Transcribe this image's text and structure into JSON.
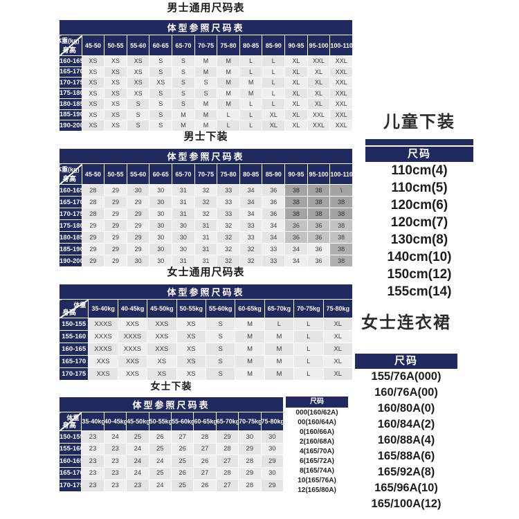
{
  "colors": {
    "navy": "#212a5e",
    "cell_gray": "#efefef",
    "dark_gray": "#a3a3a3"
  },
  "tables": [
    {
      "id": "men-general",
      "title": "男士通用尺码表",
      "subheader": "体型参照尺码表",
      "corner": {
        "top": "体重(kg)",
        "bottom": "身高"
      },
      "columns": [
        "45-50",
        "50-55",
        "55-60",
        "60-65",
        "65-70",
        "70-75",
        "75-80",
        "80-85",
        "85-90",
        "90-95",
        "95-100",
        "100-110"
      ],
      "rows": [
        {
          "label": "160-165",
          "values": [
            "XS",
            "XS",
            "XS",
            "S",
            "S",
            "M",
            "M",
            "L",
            "L",
            "XL",
            "XXL",
            "XXL"
          ]
        },
        {
          "label": "165-170",
          "values": [
            "XS",
            "XS",
            "XS",
            "S",
            "S",
            "M",
            "M",
            "L",
            "L",
            "XL",
            "XL",
            "XXL"
          ]
        },
        {
          "label": "170-175",
          "values": [
            "XS",
            "XS",
            "XS",
            "XS",
            "S",
            "S",
            "M",
            "M",
            "L",
            "XL",
            "XL",
            "XXL"
          ]
        },
        {
          "label": "175-180",
          "values": [
            "XS",
            "XS",
            "XS",
            "S",
            "S",
            "S",
            "M",
            "M",
            "L",
            "XL",
            "XL",
            "XXL"
          ]
        },
        {
          "label": "180-185",
          "values": [
            "XS",
            "XS",
            "S",
            "S",
            "S",
            "M",
            "M",
            "L",
            "L",
            "XL",
            "XL",
            "XXL"
          ]
        },
        {
          "label": "185-190",
          "values": [
            "XS",
            "XS",
            "S",
            "S",
            "M",
            "M",
            "L",
            "L",
            "XL",
            "XL",
            "XXL",
            "XXL"
          ]
        },
        {
          "label": "190-200",
          "values": [
            "XS",
            "XS",
            "S",
            "S",
            "M",
            "M",
            "L",
            "L",
            "XL",
            "XL",
            "XXL",
            "XXL"
          ]
        }
      ]
    },
    {
      "id": "men-bottoms",
      "title": "男士下装",
      "subheader": "体型参照尺码表",
      "corner": {
        "top": "体重(kg)",
        "bottom": "身高"
      },
      "columns": [
        "45-50",
        "50-55",
        "55-60",
        "60-65",
        "65-70",
        "70-75",
        "75-80",
        "80-85",
        "85-90",
        "90-95",
        "95-100",
        "100-110"
      ],
      "rows": [
        {
          "label": "160-165",
          "values": [
            "28",
            "29",
            "30",
            "30",
            "31",
            "32",
            "33",
            "34",
            "36",
            "38",
            "38",
            "\\"
          ]
        },
        {
          "label": "165-170",
          "values": [
            "28",
            "29",
            "29",
            "30",
            "31",
            "32",
            "33",
            "34",
            "36",
            "38",
            "38",
            "38"
          ]
        },
        {
          "label": "170-175",
          "values": [
            "28",
            "29",
            "29",
            "30",
            "31",
            "32",
            "33",
            "34",
            "36",
            "38",
            "38",
            "38"
          ]
        },
        {
          "label": "175-180",
          "values": [
            "29",
            "29",
            "29",
            "30",
            "30",
            "31",
            "32",
            "33",
            "34",
            "36",
            "36",
            "38"
          ]
        },
        {
          "label": "180-185",
          "values": [
            "29",
            "29",
            "29",
            "30",
            "30",
            "31",
            "32",
            "33",
            "34",
            "36",
            "36",
            "38"
          ]
        },
        {
          "label": "185-190",
          "values": [
            "29",
            "29",
            "29",
            "30",
            "30",
            "31",
            "32",
            "32",
            "33",
            "34",
            "36",
            "38"
          ]
        },
        {
          "label": "190-200",
          "values": [
            "29",
            "29",
            "30",
            "30",
            "31",
            "31",
            "32",
            "32",
            "33",
            "34",
            "36",
            "38"
          ]
        }
      ]
    },
    {
      "id": "women-general",
      "title": "女士通用尺码表",
      "subheader": "体型参照尺码表",
      "corner": {
        "top": "体重",
        "bottom": "身高"
      },
      "columns": [
        "35-40kg",
        "40-45kg",
        "45-50kg",
        "50-55kg",
        "55-60kg",
        "60-65kg",
        "65-70kg",
        "70-75kg",
        "75-80kg"
      ],
      "rows": [
        {
          "label": "150-155",
          "values": [
            "XXXS",
            "XXS",
            "XXS",
            "XS",
            "S",
            "M",
            "L",
            "L",
            "XL"
          ]
        },
        {
          "label": "155-160",
          "values": [
            "XXXS",
            "XXXS",
            "XXS",
            "XS",
            "S",
            "M",
            "M",
            "L",
            "XL"
          ]
        },
        {
          "label": "160-165",
          "values": [
            "XXXS",
            "XXXS",
            "XXS",
            "XS",
            "S",
            "M",
            "M",
            "L",
            "XL"
          ]
        },
        {
          "label": "165-170",
          "values": [
            "XXS",
            "XXS",
            "XS",
            "XS",
            "S",
            "M",
            "M",
            "L",
            "XL"
          ]
        },
        {
          "label": "170-175",
          "values": [
            "XXS",
            "XXS",
            "XS",
            "XS",
            "S",
            "M",
            "M",
            "L",
            "XL"
          ]
        }
      ]
    },
    {
      "id": "women-bottoms",
      "title": "女士下装",
      "subheader": "体型参照尺码表",
      "corner": {
        "top": "体重",
        "bottom": "身高"
      },
      "columns": [
        "35-40kg",
        "40-45kg",
        "45-50kg",
        "50-55kg",
        "55-60kg",
        "60-65kg",
        "65-70kg",
        "70-75kg",
        "75-80kg"
      ],
      "rows": [
        {
          "label": "150-155",
          "values": [
            "23",
            "24",
            "25",
            "26",
            "27",
            "28",
            "29",
            "30",
            "30"
          ]
        },
        {
          "label": "155-160",
          "values": [
            "23",
            "23",
            "24",
            "25",
            "26",
            "27",
            "28",
            "29",
            "30"
          ]
        },
        {
          "label": "160-165",
          "values": [
            "23",
            "23",
            "24",
            "24",
            "25",
            "26",
            "27",
            "28",
            "29"
          ]
        },
        {
          "label": "165-170",
          "values": [
            "23",
            "23",
            "24",
            "25",
            "26",
            "27",
            "28",
            "29",
            "30"
          ]
        },
        {
          "label": "170-175",
          "values": [
            "23",
            "23",
            "23",
            "24",
            "25",
            "26",
            "27",
            "28",
            "29"
          ]
        }
      ]
    }
  ],
  "mini_table": {
    "header": "尺码",
    "items": [
      "000(160/62A)",
      "00(160/64A)",
      "0(160/66A)",
      "2(160/68A)",
      "4(165/70A)",
      "6(165/72A)",
      "8(165/74A)",
      "10(165/76A)",
      "12(165/80A)"
    ]
  },
  "side_panels": [
    {
      "id": "kids-bottoms",
      "title": "儿童下装",
      "header": "尺码",
      "items": [
        "110cm(4)",
        "110cm(5)",
        "120cm(6)",
        "120cm(7)",
        "130cm(8)",
        "140cm(10)",
        "150cm(12)",
        "155cm(14)"
      ]
    },
    {
      "id": "women-dress",
      "title": "女士连衣裙",
      "header": "尺码",
      "items": [
        "155/76A(000)",
        "160/76A(00)",
        "160/80A(0)",
        "160/84A(2)",
        "160/88A(4)",
        "165/88A(6)",
        "165/92A(8)",
        "165/96A(10)",
        "165/100A(12)"
      ]
    }
  ]
}
